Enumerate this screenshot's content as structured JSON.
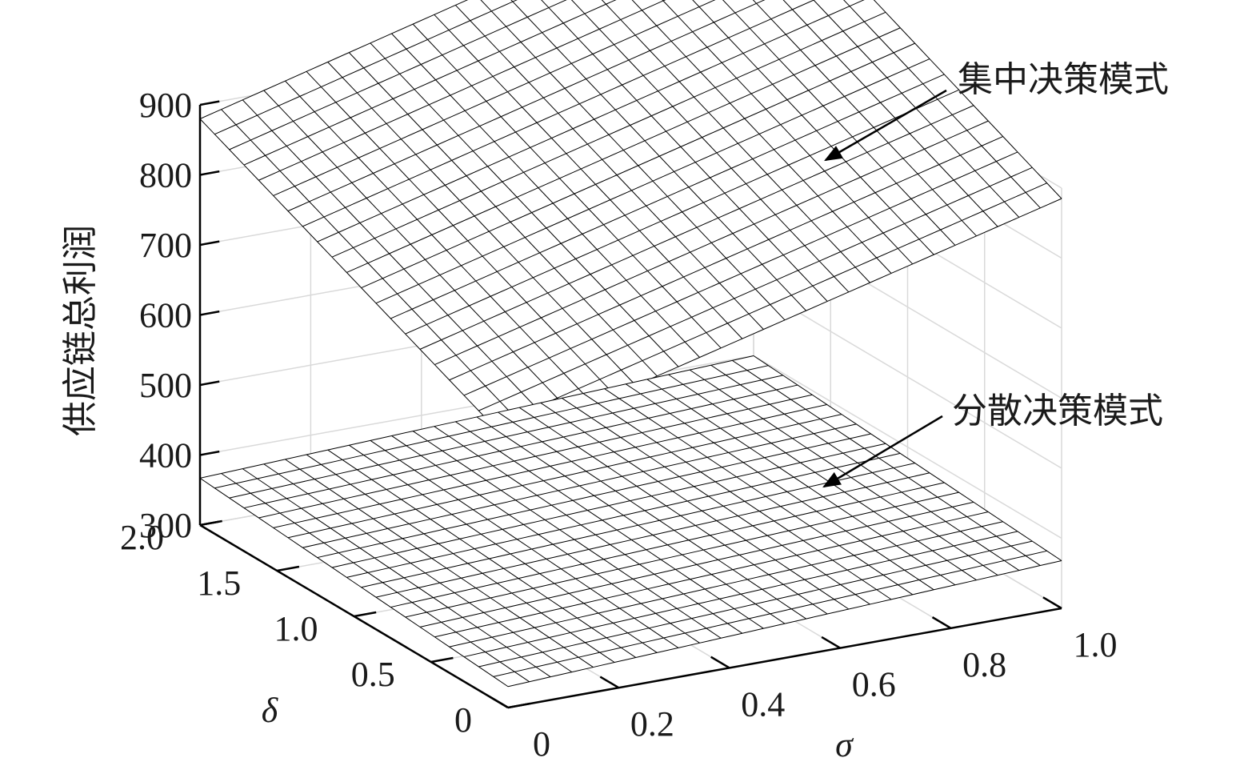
{
  "chart_data": {
    "type": "surface",
    "title": "",
    "xlabel": "σ",
    "ylabel": "δ",
    "zlabel": "供应链总利润",
    "xlim": [
      0,
      1.0
    ],
    "ylim": [
      0,
      2.0
    ],
    "zlim": [
      300,
      900
    ],
    "x_ticks": [
      "0",
      "0.2",
      "0.4",
      "0.6",
      "0.8",
      "1.0"
    ],
    "y_ticks": [
      "0",
      "0.5",
      "1.0",
      "1.5",
      "2.0"
    ],
    "z_ticks": [
      "300",
      "400",
      "500",
      "600",
      "700",
      "800",
      "900"
    ],
    "grid": true,
    "mesh_resolution": [
      26,
      21
    ],
    "series": [
      {
        "name": "集中决策模式",
        "corners": {
          "x0_y0": 680,
          "x1_y0": 885,
          "x0_y2": 880,
          "x1_y2": 1090
        }
      },
      {
        "name": "分散决策模式",
        "corners": {
          "x0_y0": 330,
          "x1_y0": 368,
          "x0_y2": 367,
          "x1_y2": 400
        }
      }
    ],
    "annotations": [
      {
        "text": "集中决策模式",
        "target_series": "集中决策模式"
      },
      {
        "text": "分散决策模式",
        "target_series": "分散决策模式"
      }
    ]
  }
}
